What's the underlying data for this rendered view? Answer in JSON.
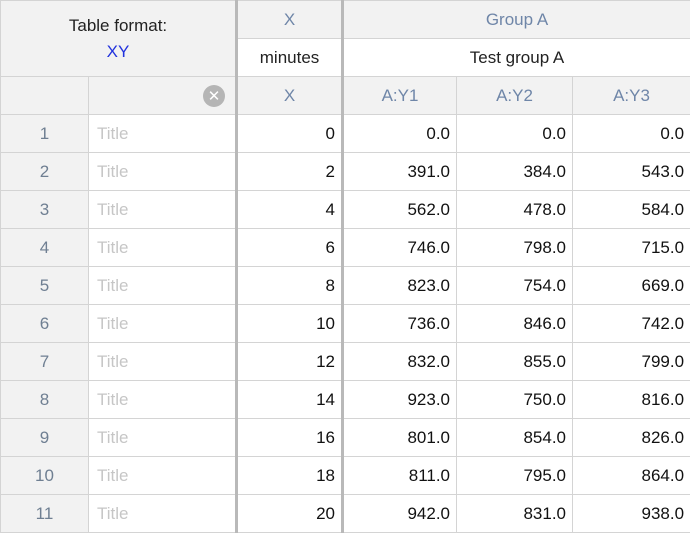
{
  "table_format": {
    "label": "Table format:",
    "value": "XY"
  },
  "x_column": {
    "group": "X",
    "title": "minutes",
    "sub": "X"
  },
  "group_a": {
    "group": "Group A",
    "title": "Test group A",
    "subcolumns": [
      "A:Y1",
      "A:Y2",
      "A:Y3"
    ]
  },
  "icons": {
    "clear": "clear-circle-icon"
  },
  "row_title_placeholder": "Title",
  "rows": [
    {
      "n": "1",
      "x": "0",
      "y1": "0.0",
      "y2": "0.0",
      "y3": "0.0"
    },
    {
      "n": "2",
      "x": "2",
      "y1": "391.0",
      "y2": "384.0",
      "y3": "543.0"
    },
    {
      "n": "3",
      "x": "4",
      "y1": "562.0",
      "y2": "478.0",
      "y3": "584.0"
    },
    {
      "n": "4",
      "x": "6",
      "y1": "746.0",
      "y2": "798.0",
      "y3": "715.0"
    },
    {
      "n": "5",
      "x": "8",
      "y1": "823.0",
      "y2": "754.0",
      "y3": "669.0"
    },
    {
      "n": "6",
      "x": "10",
      "y1": "736.0",
      "y2": "846.0",
      "y3": "742.0"
    },
    {
      "n": "7",
      "x": "12",
      "y1": "832.0",
      "y2": "855.0",
      "y3": "799.0"
    },
    {
      "n": "8",
      "x": "14",
      "y1": "923.0",
      "y2": "750.0",
      "y3": "816.0"
    },
    {
      "n": "9",
      "x": "16",
      "y1": "801.0",
      "y2": "854.0",
      "y3": "826.0"
    },
    {
      "n": "10",
      "x": "18",
      "y1": "811.0",
      "y2": "795.0",
      "y3": "864.0"
    },
    {
      "n": "11",
      "x": "20",
      "y1": "942.0",
      "y2": "831.0",
      "y3": "938.0"
    }
  ]
}
